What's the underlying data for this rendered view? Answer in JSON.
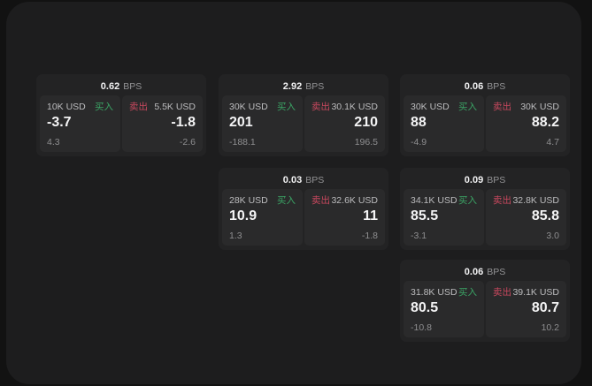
{
  "labels": {
    "buy": "买入",
    "sell": "卖出",
    "bps": "BPS"
  },
  "colors": {
    "buy_green": "#3ba465",
    "sell_red": "#c8485e",
    "window_bg": "#1d1d1e",
    "card_bg": "#232324",
    "panel_bg": "#2a2a2b"
  },
  "cards": [
    {
      "bps": "0.62",
      "buy": {
        "amount": "10K USD",
        "price": "-3.7",
        "delta": "4.3"
      },
      "sell": {
        "amount": "5.5K USD",
        "price": "-1.8",
        "delta": "-2.6"
      }
    },
    {
      "bps": "2.92",
      "buy": {
        "amount": "30K USD",
        "price": "201",
        "delta": "-188.1"
      },
      "sell": {
        "amount": "30.1K USD",
        "price": "210",
        "delta": "196.5"
      }
    },
    {
      "bps": "0.06",
      "buy": {
        "amount": "30K USD",
        "price": "88",
        "delta": "-4.9"
      },
      "sell": {
        "amount": "30K USD",
        "price": "88.2",
        "delta": "4.7"
      }
    },
    {
      "bps": "0.03",
      "buy": {
        "amount": "28K USD",
        "price": "10.9",
        "delta": "1.3"
      },
      "sell": {
        "amount": "32.6K USD",
        "price": "11",
        "delta": "-1.8"
      }
    },
    {
      "bps": "0.09",
      "buy": {
        "amount": "34.1K USD",
        "price": "85.5",
        "delta": "-3.1"
      },
      "sell": {
        "amount": "32.8K USD",
        "price": "85.8",
        "delta": "3.0"
      }
    },
    {
      "bps": "0.06",
      "buy": {
        "amount": "31.8K USD",
        "price": "80.5",
        "delta": "-10.8"
      },
      "sell": {
        "amount": "39.1K USD",
        "price": "80.7",
        "delta": "10.2"
      }
    }
  ]
}
